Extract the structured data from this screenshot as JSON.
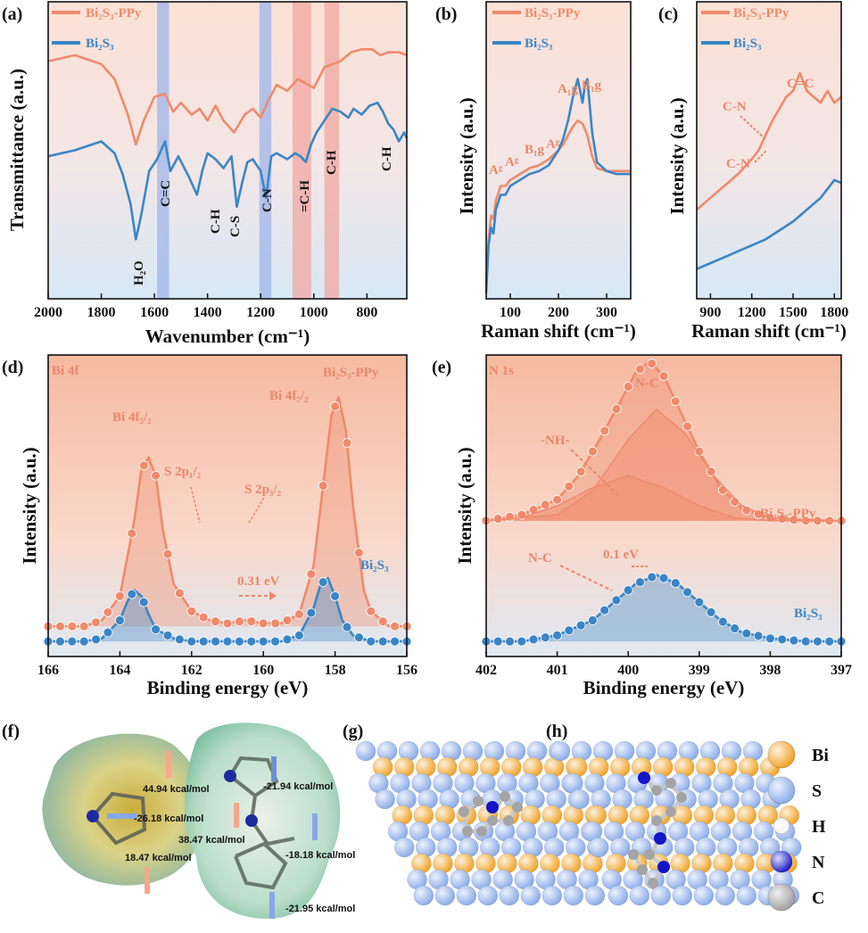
{
  "colors": {
    "orange": "#ef8a6b",
    "blue": "#3a85c6",
    "orange_bg": "#f7c8b4",
    "blue_bg": "#cfe3f4"
  },
  "chart_data": [
    {
      "panel": "(a)",
      "type": "line",
      "xlabel": "Wavenumber (cm⁻¹)",
      "ylabel": "Transmittance (a.u.)",
      "xlim": [
        2000,
        650
      ],
      "xticks": [
        2000,
        1800,
        1600,
        1400,
        1200,
        1000,
        800
      ],
      "legend": [
        "Bi₂S₃-PPy",
        "Bi₂S₃"
      ],
      "bands": [
        {
          "from": 1590,
          "to": 1545,
          "color": "#9fb4e8"
        },
        {
          "from": 1205,
          "to": 1160,
          "color": "#9fb4e8"
        },
        {
          "from": 1080,
          "to": 1010,
          "color": "#f2a7a0"
        },
        {
          "from": 960,
          "to": 905,
          "color": "#f2a7a0"
        }
      ],
      "series": [
        {
          "name": "Bi₂S₃-PPy",
          "x": [
            2000,
            1900,
            1800,
            1750,
            1700,
            1670,
            1640,
            1600,
            1560,
            1530,
            1500,
            1460,
            1430,
            1400,
            1370,
            1340,
            1300,
            1260,
            1230,
            1200,
            1170,
            1140,
            1100,
            1060,
            1040,
            1000,
            960,
            930,
            900,
            860,
            820,
            780,
            750,
            720,
            680,
            650
          ],
          "y": [
            0.8,
            0.82,
            0.79,
            0.74,
            0.62,
            0.52,
            0.6,
            0.68,
            0.69,
            0.63,
            0.66,
            0.62,
            0.64,
            0.6,
            0.65,
            0.6,
            0.56,
            0.62,
            0.64,
            0.61,
            0.67,
            0.72,
            0.7,
            0.74,
            0.73,
            0.71,
            0.78,
            0.79,
            0.8,
            0.83,
            0.84,
            0.84,
            0.82,
            0.83,
            0.83,
            0.82
          ]
        },
        {
          "name": "Bi₂S₃",
          "x": [
            2000,
            1900,
            1800,
            1750,
            1720,
            1690,
            1670,
            1650,
            1620,
            1590,
            1560,
            1540,
            1510,
            1470,
            1440,
            1420,
            1400,
            1370,
            1340,
            1310,
            1290,
            1270,
            1250,
            1230,
            1200,
            1180,
            1160,
            1140,
            1100,
            1070,
            1050,
            1030,
            1010,
            990,
            960,
            930,
            900,
            870,
            850,
            820,
            790,
            760,
            740,
            720,
            700,
            680,
            660,
            650
          ],
          "y": [
            0.48,
            0.5,
            0.53,
            0.49,
            0.42,
            0.32,
            0.2,
            0.28,
            0.43,
            0.47,
            0.53,
            0.43,
            0.48,
            0.41,
            0.35,
            0.43,
            0.49,
            0.47,
            0.44,
            0.48,
            0.31,
            0.39,
            0.46,
            0.47,
            0.43,
            0.34,
            0.48,
            0.49,
            0.47,
            0.49,
            0.48,
            0.46,
            0.52,
            0.56,
            0.6,
            0.64,
            0.63,
            0.61,
            0.64,
            0.62,
            0.65,
            0.66,
            0.63,
            0.59,
            0.57,
            0.53,
            0.56,
            0.54
          ]
        }
      ],
      "annotations": [
        "H₂O",
        "C=C",
        "C-H",
        "C-S",
        "C-N",
        "=C-H",
        "C-H",
        "C-H"
      ]
    },
    {
      "panel": "(b)",
      "type": "line",
      "xlabel": "Raman shift (cm⁻¹)",
      "ylabel": "Intensity (a.u.)",
      "xlim": [
        50,
        350
      ],
      "xticks": [
        100,
        200,
        300
      ],
      "legend": [
        "Bi₂S₃-PPy",
        "Bi₂S₃"
      ],
      "series": [
        {
          "name": "Bi₂S₃-PPy",
          "x": [
            50,
            55,
            60,
            65,
            70,
            80,
            90,
            100,
            120,
            140,
            160,
            180,
            200,
            210,
            220,
            230,
            240,
            250,
            260,
            270,
            280,
            300,
            320,
            350
          ],
          "y": [
            0.05,
            0.2,
            0.28,
            0.27,
            0.33,
            0.38,
            0.38,
            0.4,
            0.42,
            0.44,
            0.45,
            0.47,
            0.5,
            0.52,
            0.55,
            0.58,
            0.6,
            0.59,
            0.55,
            0.48,
            0.44,
            0.43,
            0.43,
            0.43
          ]
        },
        {
          "name": "Bi₂S₃",
          "x": [
            50,
            55,
            60,
            65,
            70,
            80,
            90,
            100,
            120,
            140,
            160,
            180,
            200,
            210,
            220,
            230,
            240,
            250,
            255,
            260,
            270,
            280,
            300,
            320,
            350
          ],
          "y": [
            0.02,
            0.18,
            0.24,
            0.22,
            0.3,
            0.35,
            0.35,
            0.38,
            0.4,
            0.42,
            0.43,
            0.45,
            0.5,
            0.54,
            0.6,
            0.68,
            0.74,
            0.66,
            0.72,
            0.74,
            0.56,
            0.46,
            0.43,
            0.42,
            0.42
          ]
        }
      ],
      "annotations": [
        "A₁g",
        "B₁g",
        "Aᵍ",
        "B₁g",
        "Aᵍ",
        "Aᵍ"
      ]
    },
    {
      "panel": "(c)",
      "type": "line",
      "xlabel": "Raman shift (cm⁻¹)",
      "ylabel": "Intensity (a.u.)",
      "xlim": [
        800,
        1850
      ],
      "xticks": [
        900,
        1200,
        1500,
        1800
      ],
      "legend": [
        "Bi₂S₃-PPy",
        "Bi₂S₃"
      ],
      "series": [
        {
          "name": "Bi₂S₃-PPy",
          "x": [
            800,
            900,
            1000,
            1100,
            1200,
            1250,
            1300,
            1350,
            1400,
            1450,
            1500,
            1550,
            1600,
            1650,
            1700,
            1750,
            1800,
            1850
          ],
          "y": [
            0.3,
            0.34,
            0.38,
            0.42,
            0.47,
            0.5,
            0.55,
            0.6,
            0.64,
            0.68,
            0.7,
            0.76,
            0.7,
            0.68,
            0.66,
            0.7,
            0.66,
            0.68
          ]
        },
        {
          "name": "Bi₂S₃",
          "x": [
            800,
            900,
            1000,
            1100,
            1200,
            1300,
            1400,
            1500,
            1600,
            1700,
            1750,
            1800,
            1850
          ],
          "y": [
            0.1,
            0.12,
            0.14,
            0.16,
            0.18,
            0.2,
            0.23,
            0.26,
            0.3,
            0.34,
            0.37,
            0.4,
            0.39
          ]
        }
      ],
      "annotations": [
        "C=C",
        "C-N",
        "C-N"
      ]
    },
    {
      "panel": "(d)",
      "type": "line",
      "subtitle": "Bi 4f",
      "xlabel": "Binding energy (eV)",
      "ylabel": "Intensity (a.u.)",
      "xlim": [
        166,
        156
      ],
      "xticks": [
        166,
        164,
        162,
        160,
        158,
        156
      ],
      "series": [
        {
          "name": "Bi₂S₃-PPy",
          "x": [
            166,
            165,
            164.5,
            164,
            163.6,
            163.4,
            163.2,
            163,
            162.8,
            162.5,
            162,
            161.5,
            161,
            160.5,
            160,
            159.5,
            159,
            158.6,
            158.3,
            158.1,
            157.9,
            157.7,
            157.5,
            157.2,
            157,
            156.5,
            156
          ],
          "y": [
            0.1,
            0.1,
            0.12,
            0.2,
            0.45,
            0.62,
            0.66,
            0.6,
            0.42,
            0.24,
            0.15,
            0.12,
            0.11,
            0.12,
            0.11,
            0.11,
            0.14,
            0.3,
            0.6,
            0.8,
            0.86,
            0.75,
            0.5,
            0.22,
            0.15,
            0.1,
            0.1
          ]
        },
        {
          "name": "Bi₂S₃",
          "x": [
            166,
            165,
            164.5,
            164,
            163.8,
            163.6,
            163.4,
            163.2,
            163,
            162.5,
            162,
            161,
            160,
            159.5,
            159,
            158.6,
            158.4,
            158.2,
            158,
            157.8,
            157.5,
            157,
            156.5,
            156
          ],
          "y": [
            0.05,
            0.05,
            0.06,
            0.12,
            0.18,
            0.22,
            0.2,
            0.14,
            0.09,
            0.06,
            0.05,
            0.05,
            0.05,
            0.05,
            0.07,
            0.16,
            0.24,
            0.26,
            0.2,
            0.12,
            0.07,
            0.05,
            0.05,
            0.05
          ]
        }
      ],
      "annotations": [
        "Bi 4f₅/₂",
        "S 2p₁/₂",
        "S 2p₃/₂",
        "Bi 4f₇/₂",
        "Bi₂S₃-PPy",
        "Bi₂S₃",
        "0.31 eV"
      ]
    },
    {
      "panel": "(e)",
      "type": "line",
      "subtitle": "N 1s",
      "xlabel": "Binding energy (eV)",
      "ylabel": "Intensity (a.u.)",
      "xlim": [
        402,
        397
      ],
      "xticks": [
        402,
        401,
        400,
        399,
        398,
        397
      ],
      "series": [
        {
          "name": "Bi₂S₃-PPy",
          "x": [
            402,
            401.5,
            401,
            400.7,
            400.4,
            400.1,
            399.9,
            399.7,
            399.5,
            399.3,
            399,
            398.7,
            398.4,
            398,
            397.5,
            397
          ],
          "y": [
            0.45,
            0.47,
            0.52,
            0.6,
            0.72,
            0.85,
            0.94,
            0.98,
            0.93,
            0.83,
            0.68,
            0.56,
            0.49,
            0.46,
            0.45,
            0.45
          ]
        },
        {
          "name": "-NH-",
          "x": [
            402,
            401.5,
            401,
            400.5,
            400,
            399.5,
            399,
            398.5,
            398,
            397
          ],
          "y": [
            0.45,
            0.46,
            0.5,
            0.56,
            0.6,
            0.56,
            0.5,
            0.46,
            0.45,
            0.45
          ]
        },
        {
          "name": "N-C",
          "x": [
            402,
            401,
            400.5,
            400,
            399.6,
            399.2,
            398.8,
            398.4,
            398,
            397
          ],
          "y": [
            0.45,
            0.47,
            0.55,
            0.72,
            0.82,
            0.74,
            0.6,
            0.5,
            0.46,
            0.45
          ]
        },
        {
          "name": "Bi₂S₃",
          "x": [
            402,
            401.5,
            401,
            400.5,
            400.2,
            399.9,
            399.6,
            399.3,
            399,
            398.7,
            398.4,
            398,
            397.5,
            397
          ],
          "y": [
            0.05,
            0.05,
            0.07,
            0.12,
            0.18,
            0.24,
            0.27,
            0.24,
            0.18,
            0.12,
            0.08,
            0.06,
            0.05,
            0.05
          ]
        }
      ],
      "annotations": [
        "N-C",
        "-NH-",
        "Bi₂S₃-PPy",
        "N-C",
        "0.1 eV",
        "Bi₂S₃"
      ]
    }
  ],
  "panel_f": {
    "label": "(f)",
    "values": [
      "44.94 kcal/mol",
      "-26.18 kcal/mol",
      "18.47 kcal/mol",
      "-21.94 kcal/mol",
      "38.47 kcal/mol",
      "-18.18 kcal/mol",
      "-21.95 kcal/mol"
    ]
  },
  "panel_g": {
    "label": "(g)"
  },
  "panel_h": {
    "label": "(h)"
  },
  "atom_legend": [
    {
      "label": "Bi",
      "color": "#f0a020"
    },
    {
      "label": "S",
      "color": "#86a8e8"
    },
    {
      "label": "H",
      "color": "#f4f4f4"
    },
    {
      "label": "N",
      "color": "#1414c8"
    },
    {
      "label": "C",
      "color": "#9c9c9c"
    }
  ]
}
